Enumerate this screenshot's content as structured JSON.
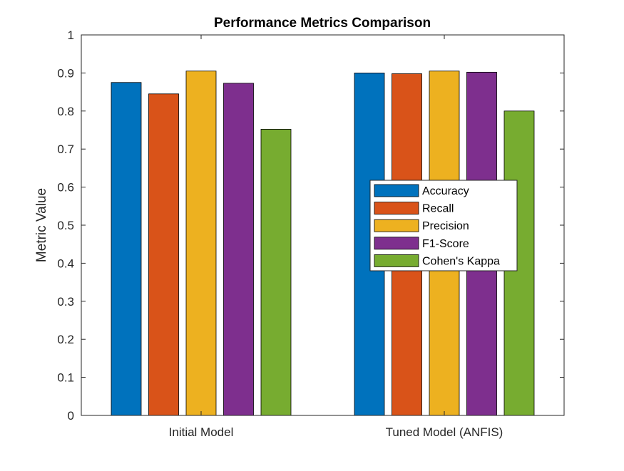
{
  "chart_data": {
    "type": "bar",
    "title": "Performance Metrics Comparison",
    "xlabel": "",
    "ylabel": "Metric Value",
    "categories": [
      "Initial Model",
      "Tuned Model (ANFIS)"
    ],
    "ylim": [
      0,
      1
    ],
    "yticks": [
      "0",
      "0.1",
      "0.2",
      "0.3",
      "0.4",
      "0.5",
      "0.6",
      "0.7",
      "0.8",
      "0.9",
      "1"
    ],
    "grid": false,
    "legend_position": "center-right",
    "series": [
      {
        "name": "Accuracy",
        "color": "#0072BD",
        "values": [
          0.875,
          0.9
        ]
      },
      {
        "name": "Recall",
        "color": "#D95319",
        "values": [
          0.845,
          0.898
        ]
      },
      {
        "name": "Precision",
        "color": "#EDB120",
        "values": [
          0.905,
          0.905
        ]
      },
      {
        "name": "F1-Score",
        "color": "#7E2F8E",
        "values": [
          0.873,
          0.902
        ]
      },
      {
        "name": "Cohen's Kappa",
        "color": "#77AC30",
        "values": [
          0.752,
          0.8
        ]
      }
    ]
  }
}
